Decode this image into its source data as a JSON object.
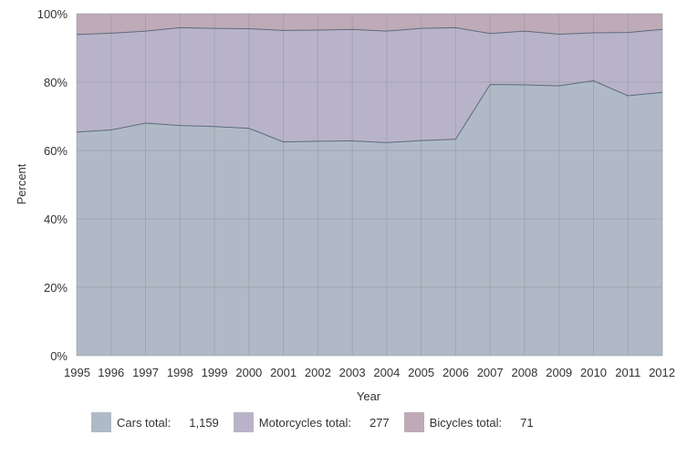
{
  "chart_data": {
    "type": "area",
    "stacked": "percent",
    "x": [
      1995,
      1996,
      1997,
      1998,
      1999,
      2000,
      2001,
      2002,
      2003,
      2004,
      2005,
      2006,
      2007,
      2008,
      2009,
      2010,
      2011,
      2012
    ],
    "x_tick_labels": [
      "1995",
      "1996",
      "1997",
      "1998",
      "1999",
      "2000",
      "2001",
      "2002",
      "2003",
      "2004",
      "2005",
      "2006",
      "2007",
      "2008",
      "2009",
      "2010",
      "2011",
      "2012"
    ],
    "xlabel": "Year",
    "ylabel": "Percent",
    "ylim": [
      0,
      100
    ],
    "y_tick_labels": [
      "0%",
      "20%",
      "40%",
      "60%",
      "80%",
      "100%"
    ],
    "grid": true,
    "legend_placement": "bottom",
    "series": [
      {
        "name": "Cars total:",
        "total": "1,159",
        "color": "#b0bac6",
        "values": [
          65.4,
          66.0,
          68.0,
          67.3,
          67.0,
          66.5,
          62.5,
          62.7,
          62.8,
          62.3,
          62.9,
          63.3,
          79.3,
          79.2,
          78.9,
          80.4,
          76.0,
          77.0
        ]
      },
      {
        "name": "Motorcycles total:",
        "total": "277",
        "color": "#b9b3c9",
        "values": [
          28.5,
          28.3,
          26.9,
          28.6,
          28.7,
          29.1,
          32.6,
          32.5,
          32.6,
          32.6,
          32.8,
          32.6,
          14.9,
          15.7,
          15.1,
          14.0,
          18.5,
          18.4
        ]
      },
      {
        "name": "Bicycles total:",
        "total": "71",
        "color": "#bfaab7",
        "values": [
          6.1,
          5.7,
          5.1,
          4.1,
          4.3,
          4.4,
          4.9,
          4.8,
          4.6,
          5.1,
          4.3,
          4.1,
          5.8,
          5.1,
          6.0,
          5.6,
          5.5,
          4.6
        ]
      }
    ],
    "line_color": "#5d6b7c",
    "grid_color": "#8f97a3"
  }
}
